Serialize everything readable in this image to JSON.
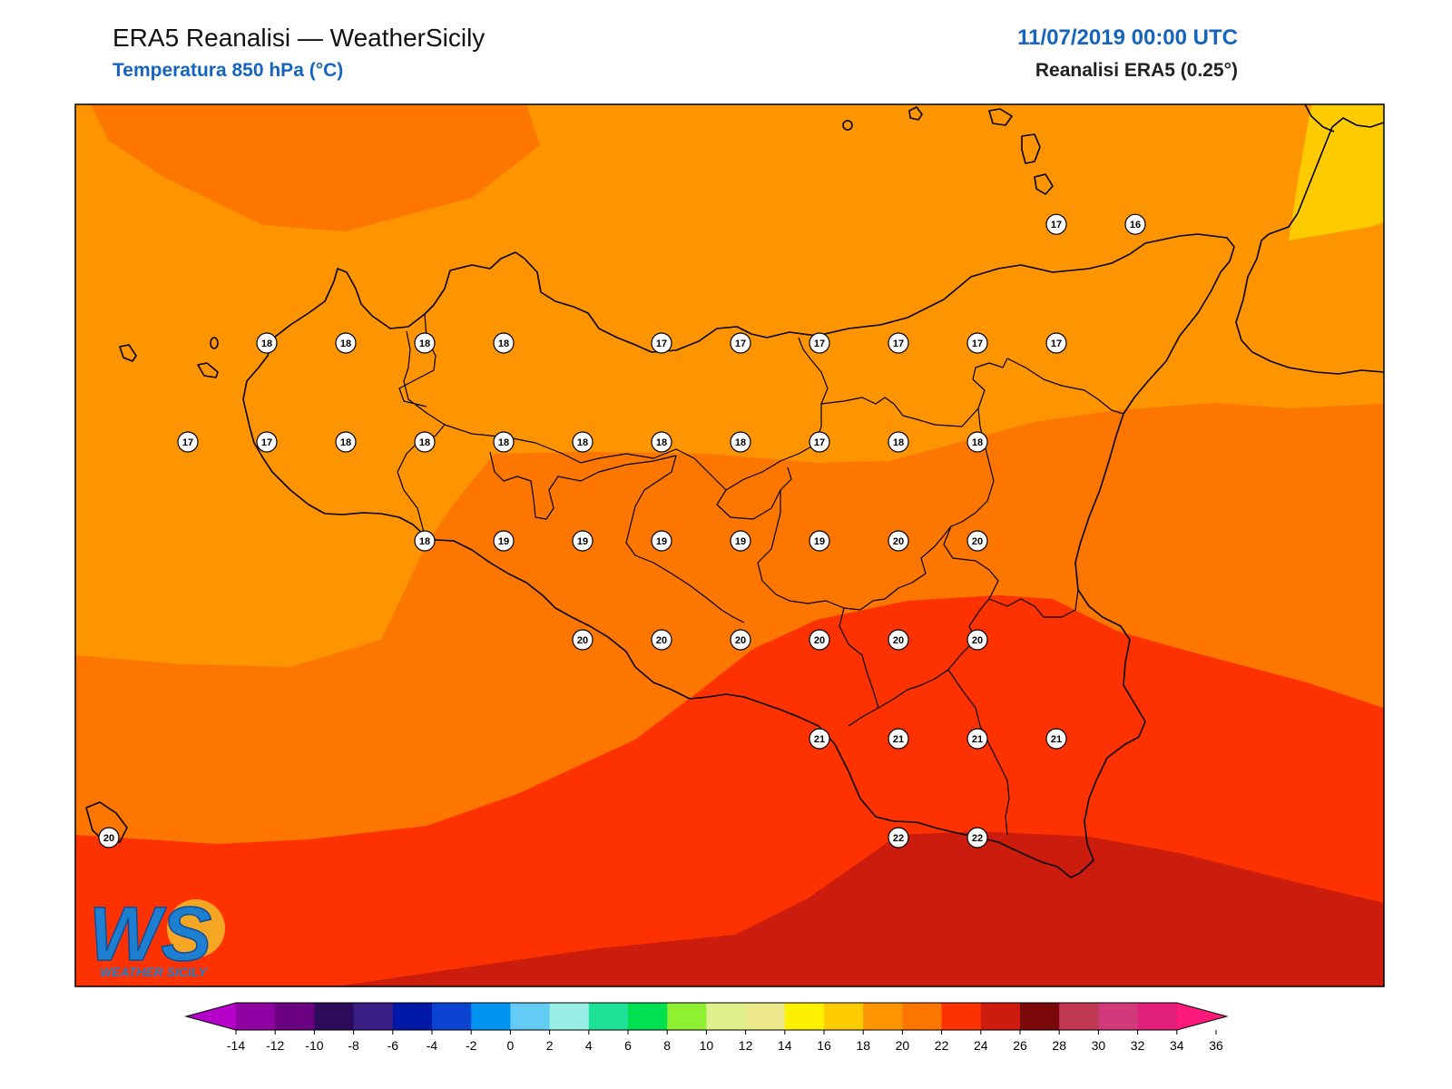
{
  "header": {
    "title": "ERA5 Reanalisi — WeatherSicily",
    "subtitle": "Temperatura 850 hPa (°C)",
    "datetime": "11/07/2019 00:00 UTC",
    "source": "Reanalisi ERA5 (0.25°)"
  },
  "logo": {
    "text": "WS",
    "caption": "WEATHER SICILY"
  },
  "colors": {
    "t16_18": "#fd9400",
    "t18_20": "#fc7600",
    "t20_22": "#fd3200",
    "t22_24": "#cb1c0d",
    "t14_16": "#fdcb00",
    "coast": "#000000",
    "title_blue": "#1565c0"
  },
  "legend": {
    "ticks": [
      "-14",
      "-12",
      "-10",
      "-8",
      "-6",
      "-4",
      "-2",
      "0",
      "2",
      "4",
      "6",
      "8",
      "10",
      "12",
      "14",
      "16",
      "18",
      "20",
      "22",
      "24",
      "26",
      "28",
      "30",
      "32",
      "34",
      "36"
    ],
    "colors": [
      "#b400c8",
      "#8e00a0",
      "#6a0080",
      "#2e0a5a",
      "#3a1e86",
      "#0018a8",
      "#0a44d0",
      "#0094f0",
      "#62ccf4",
      "#98eee6",
      "#1ce196",
      "#00e050",
      "#8ef030",
      "#dcf08c",
      "#ece88c",
      "#fff000",
      "#fdcb00",
      "#fd9400",
      "#fc7600",
      "#fd3200",
      "#cb1c0d",
      "#7a0808",
      "#c03850",
      "#d03a7a",
      "#e0207a",
      "#ff1a7c"
    ]
  },
  "stations": [
    {
      "v": "18",
      "lon": 12.7,
      "lat": 38.3
    },
    {
      "v": "18",
      "lon": 13.2,
      "lat": 38.3
    },
    {
      "v": "18",
      "lon": 13.7,
      "lat": 38.3
    },
    {
      "v": "18",
      "lon": 14.2,
      "lat": 38.3
    },
    {
      "v": "17",
      "lon": 15.2,
      "lat": 38.3
    },
    {
      "v": "17",
      "lon": 15.7,
      "lat": 38.3
    },
    {
      "v": "17",
      "lon": 16.2,
      "lat": 38.3
    },
    {
      "v": "17",
      "lon": 16.7,
      "lat": 38.3
    },
    {
      "v": "17",
      "lon": 17.2,
      "lat": 38.3
    },
    {
      "v": "17",
      "lon": 17.7,
      "lat": 38.3
    },
    {
      "v": "17",
      "lon": 17.7,
      "lat": 38.9
    },
    {
      "v": "16",
      "lon": 18.2,
      "lat": 38.9
    },
    {
      "v": "17",
      "lon": 12.2,
      "lat": 37.8
    },
    {
      "v": "17",
      "lon": 12.7,
      "lat": 37.8
    },
    {
      "v": "18",
      "lon": 13.2,
      "lat": 37.8
    },
    {
      "v": "18",
      "lon": 13.7,
      "lat": 37.8
    },
    {
      "v": "18",
      "lon": 14.2,
      "lat": 37.8
    },
    {
      "v": "18",
      "lon": 14.7,
      "lat": 37.8
    },
    {
      "v": "18",
      "lon": 15.2,
      "lat": 37.8
    },
    {
      "v": "18",
      "lon": 15.7,
      "lat": 37.8
    },
    {
      "v": "17",
      "lon": 16.2,
      "lat": 37.8
    },
    {
      "v": "18",
      "lon": 16.7,
      "lat": 37.8
    },
    {
      "v": "18",
      "lon": 17.2,
      "lat": 37.8
    },
    {
      "v": "18",
      "lon": 13.7,
      "lat": 37.3
    },
    {
      "v": "19",
      "lon": 14.2,
      "lat": 37.3
    },
    {
      "v": "19",
      "lon": 14.7,
      "lat": 37.3
    },
    {
      "v": "19",
      "lon": 15.2,
      "lat": 37.3
    },
    {
      "v": "19",
      "lon": 15.7,
      "lat": 37.3
    },
    {
      "v": "19",
      "lon": 16.2,
      "lat": 37.3
    },
    {
      "v": "20",
      "lon": 16.7,
      "lat": 37.3
    },
    {
      "v": "20",
      "lon": 17.2,
      "lat": 37.3
    },
    {
      "v": "20",
      "lon": 14.7,
      "lat": 36.8
    },
    {
      "v": "20",
      "lon": 15.2,
      "lat": 36.8
    },
    {
      "v": "20",
      "lon": 15.7,
      "lat": 36.8
    },
    {
      "v": "20",
      "lon": 16.2,
      "lat": 36.8
    },
    {
      "v": "20",
      "lon": 16.7,
      "lat": 36.8
    },
    {
      "v": "20",
      "lon": 17.2,
      "lat": 36.8
    },
    {
      "v": "21",
      "lon": 16.2,
      "lat": 36.3
    },
    {
      "v": "21",
      "lon": 16.7,
      "lat": 36.3
    },
    {
      "v": "21",
      "lon": 17.2,
      "lat": 36.3
    },
    {
      "v": "21",
      "lon": 17.7,
      "lat": 36.3
    },
    {
      "v": "22",
      "lon": 16.7,
      "lat": 35.8
    },
    {
      "v": "22",
      "lon": 17.2,
      "lat": 35.8
    },
    {
      "v": "20",
      "lon": 11.7,
      "lat": 35.8
    }
  ]
}
